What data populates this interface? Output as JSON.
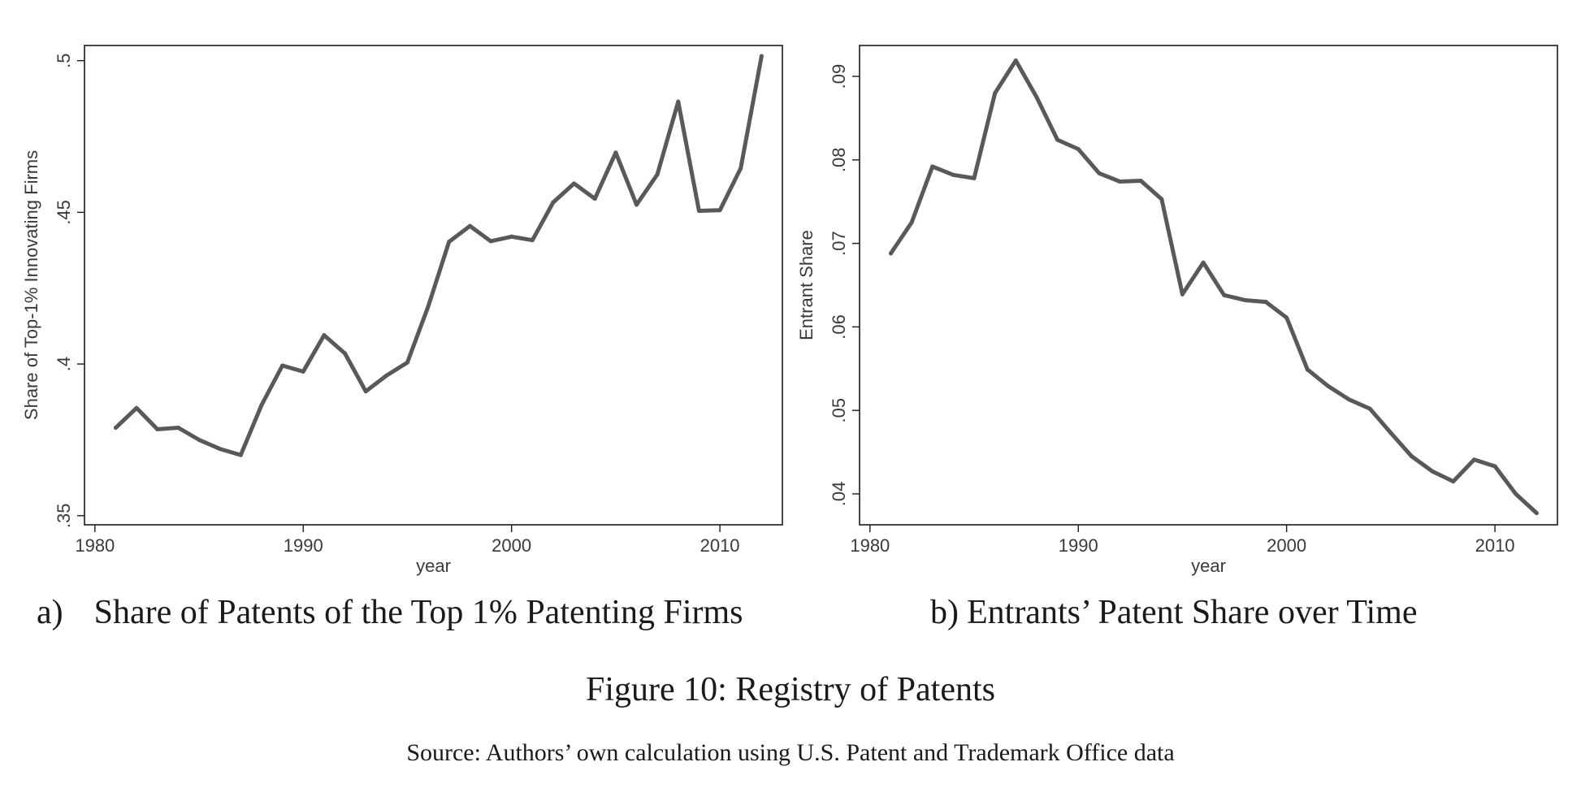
{
  "chart_data": [
    {
      "type": "line",
      "panel": "a)",
      "caption": "Share of Patents of the Top 1% Patenting Firms",
      "xlabel": "year",
      "ylabel": "Share of Top-1% Innovating Firms",
      "xlim": [
        1979.5,
        2013
      ],
      "ylim": [
        0.347,
        0.505
      ],
      "xticks": [
        1980,
        1990,
        2000,
        2010
      ],
      "xtick_labels": [
        "1980",
        "1990",
        "2000",
        "2010"
      ],
      "yticks": [
        0.35,
        0.4,
        0.45,
        0.5
      ],
      "ytick_labels": [
        ".35",
        ".4",
        ".45",
        ".5"
      ],
      "grid": false,
      "line_color": "#595959",
      "x": [
        1981,
        1982,
        1983,
        1984,
        1985,
        1986,
        1987,
        1988,
        1989,
        1990,
        1991,
        1992,
        1993,
        1994,
        1995,
        1996,
        1997,
        1998,
        1999,
        2000,
        2001,
        2002,
        2003,
        2004,
        2005,
        2006,
        2007,
        2008,
        2009,
        2010,
        2011,
        2012
      ],
      "y": [
        0.379,
        0.3855,
        0.3785,
        0.379,
        0.375,
        0.372,
        0.37,
        0.3865,
        0.3995,
        0.3975,
        0.4095,
        0.4035,
        0.391,
        0.3962,
        0.4005,
        0.419,
        0.4403,
        0.4455,
        0.4405,
        0.442,
        0.4408,
        0.4533,
        0.4595,
        0.4545,
        0.4697,
        0.4525,
        0.4625,
        0.4865,
        0.4505,
        0.4507,
        0.4645,
        0.5015
      ]
    },
    {
      "type": "line",
      "panel": "b)",
      "caption": "Entrants’ Patent Share over Time",
      "xlabel": "year",
      "ylabel": "Entrant Share",
      "xlim": [
        1979.5,
        2013
      ],
      "ylim": [
        0.0363,
        0.0937
      ],
      "xticks": [
        1980,
        1990,
        2000,
        2010
      ],
      "xtick_labels": [
        "1980",
        "1990",
        "2000",
        "2010"
      ],
      "yticks": [
        0.04,
        0.05,
        0.06,
        0.07,
        0.08,
        0.09
      ],
      "ytick_labels": [
        ".04",
        ".05",
        ".06",
        ".07",
        ".08",
        ".09"
      ],
      "grid": false,
      "line_color": "#595959",
      "x": [
        1981,
        1982,
        1983,
        1984,
        1985,
        1986,
        1987,
        1988,
        1989,
        1990,
        1991,
        1992,
        1993,
        1994,
        1995,
        1996,
        1997,
        1998,
        1999,
        2000,
        2001,
        2002,
        2003,
        2004,
        2005,
        2006,
        2007,
        2008,
        2009,
        2010,
        2011,
        2012
      ],
      "y": [
        0.0688,
        0.0725,
        0.0792,
        0.0782,
        0.0778,
        0.088,
        0.0919,
        0.0875,
        0.0824,
        0.0813,
        0.0784,
        0.0774,
        0.0775,
        0.0753,
        0.0639,
        0.0677,
        0.0638,
        0.0632,
        0.063,
        0.0611,
        0.0549,
        0.0529,
        0.0513,
        0.0502,
        0.0473,
        0.0445,
        0.0427,
        0.0415,
        0.0441,
        0.0433,
        0.04,
        0.0377
      ]
    }
  ],
  "figure_caption": "Figure 10: Registry of Patents",
  "source_note": "Source: Authors’ own calculation using U.S. Patent and Trademark Office data"
}
